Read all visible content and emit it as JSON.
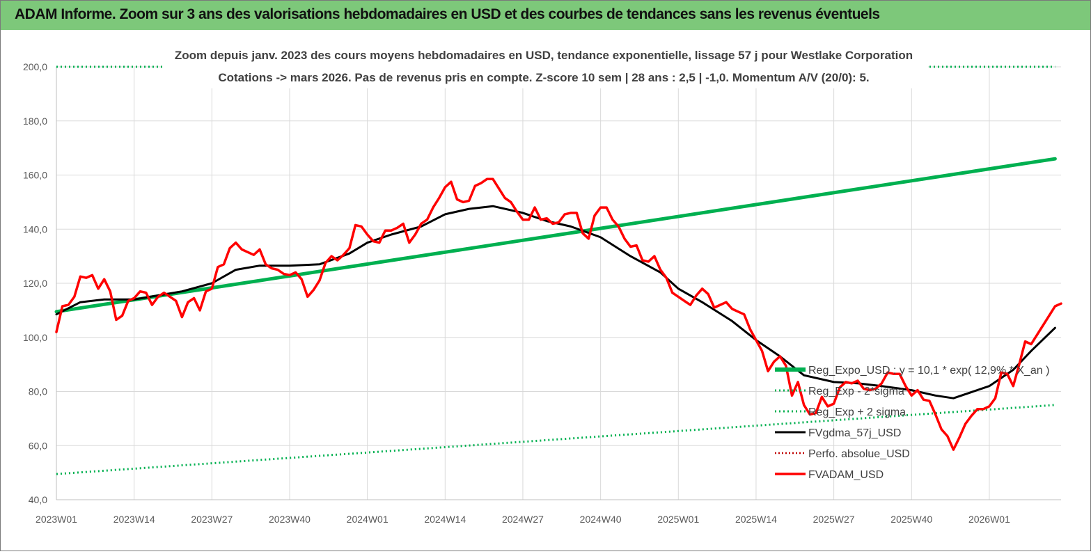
{
  "banner": {
    "title": "ADAM Informe. Zoom sur 3 ans des valorisations hebdomadaires en USD et des courbes de tendances sans les revenus éventuels"
  },
  "colors": {
    "banner_bg": "#7dc87a",
    "reg_expo": "#00b050",
    "fvgdma": "#000000",
    "fvadam": "#ff0000",
    "perfo": "#c00000",
    "grid": "#d9d9d9",
    "title_text": "#404040",
    "tick_text": "#595959"
  },
  "chart_data": {
    "type": "line",
    "title_line1": "Zoom depuis janv. 2023 des cours moyens hebdomadaires en USD, tendance exponentielle, lissage 57 j pour Westlake Corporation",
    "title_line2": "Cotations -> mars 2026. Pas de revenus pris en compte. Z-score 10 sem | 28 ans : 2,5 | -1,0. Momentum A/V (20/0): 5.",
    "ylim": [
      40,
      200
    ],
    "yticks": [
      "40,0",
      "60,0",
      "80,0",
      "100,0",
      "120,0",
      "140,0",
      "160,0",
      "180,0",
      "200,0"
    ],
    "xticks": [
      "2023W01",
      "2023W14",
      "2023W27",
      "2023W40",
      "2024W01",
      "2024W14",
      "2024W27",
      "2024W40",
      "2025W01",
      "2025W14",
      "2025W27",
      "2025W40",
      "2026W01"
    ],
    "grid": true,
    "legend_position": "bottom-right",
    "series": [
      {
        "name": "Reg_Expo_USD : y = 10,1 * exp( 12,9% * X_an )",
        "style": "solid-thick",
        "points": [
          [
            "2023W01",
            109.5
          ],
          [
            "2026W12",
            166.0
          ]
        ]
      },
      {
        "name": "Reg_Exp - 2*sigma",
        "style": "dotted",
        "points": [
          [
            "2023W01",
            49.5
          ],
          [
            "2026W12",
            75.0
          ]
        ]
      },
      {
        "name": "Reg_Exp + 2 sigma",
        "style": "dotted",
        "points": [
          [
            "2023W01",
            200.0
          ],
          [
            "2026W12",
            200.0
          ]
        ]
      },
      {
        "name": "FVgdma_57j_USD",
        "style": "solid",
        "points": [
          [
            "2023W01",
            108.5
          ],
          [
            "2023W05",
            113.0
          ],
          [
            "2023W09",
            114.0
          ],
          [
            "2023W14",
            114.0
          ],
          [
            "2023W18",
            115.5
          ],
          [
            "2023W22",
            117.0
          ],
          [
            "2023W27",
            120.0
          ],
          [
            "2023W31",
            125.0
          ],
          [
            "2023W35",
            126.5
          ],
          [
            "2023W40",
            126.5
          ],
          [
            "2023W45",
            127.0
          ],
          [
            "2023W50",
            131.0
          ],
          [
            "2024W01",
            135.0
          ],
          [
            "2024W05",
            138.0
          ],
          [
            "2024W10",
            141.0
          ],
          [
            "2024W14",
            145.5
          ],
          [
            "2024W18",
            147.5
          ],
          [
            "2024W22",
            148.5
          ],
          [
            "2024W27",
            146.0
          ],
          [
            "2024W31",
            143.0
          ],
          [
            "2024W35",
            141.0
          ],
          [
            "2024W40",
            137.0
          ],
          [
            "2024W45",
            130.0
          ],
          [
            "2024W50",
            124.0
          ],
          [
            "2025W01",
            118.0
          ],
          [
            "2025W05",
            113.0
          ],
          [
            "2025W10",
            106.0
          ],
          [
            "2025W14",
            99.0
          ],
          [
            "2025W18",
            93.0
          ],
          [
            "2025W22",
            86.0
          ],
          [
            "2025W27",
            83.5
          ],
          [
            "2025W31",
            83.0
          ],
          [
            "2025W35",
            82.0
          ],
          [
            "2025W40",
            80.5
          ],
          [
            "2025W44",
            78.5
          ],
          [
            "2025W47",
            77.5
          ],
          [
            "2026W01",
            82.0
          ],
          [
            "2026W05",
            88.0
          ],
          [
            "2026W08",
            95.0
          ],
          [
            "2026W12",
            103.5
          ]
        ]
      },
      {
        "name": "Perfo. absolue_USD",
        "style": "dotted",
        "points": []
      },
      {
        "name": "FVADAM_USD",
        "style": "solid-thick",
        "points": [
          [
            "2023W01",
            102.0
          ],
          [
            "2023W02",
            111.5
          ],
          [
            "2023W03",
            112.0
          ],
          [
            "2023W04",
            115.0
          ],
          [
            "2023W05",
            122.5
          ],
          [
            "2023W06",
            122.0
          ],
          [
            "2023W07",
            123.0
          ],
          [
            "2023W08",
            118.0
          ],
          [
            "2023W09",
            121.5
          ],
          [
            "2023W10",
            117.0
          ],
          [
            "2023W11",
            106.5
          ],
          [
            "2023W12",
            108.0
          ],
          [
            "2023W13",
            113.5
          ],
          [
            "2023W14",
            114.5
          ],
          [
            "2023W15",
            117.0
          ],
          [
            "2023W16",
            116.5
          ],
          [
            "2023W17",
            112.0
          ],
          [
            "2023W18",
            115.0
          ],
          [
            "2023W19",
            116.5
          ],
          [
            "2023W20",
            115.0
          ],
          [
            "2023W21",
            113.5
          ],
          [
            "2023W22",
            107.5
          ],
          [
            "2023W23",
            113.0
          ],
          [
            "2023W24",
            114.5
          ],
          [
            "2023W25",
            110.0
          ],
          [
            "2023W26",
            117.0
          ],
          [
            "2023W27",
            118.0
          ],
          [
            "2023W28",
            126.0
          ],
          [
            "2023W29",
            127.0
          ],
          [
            "2023W30",
            133.0
          ],
          [
            "2023W31",
            135.0
          ],
          [
            "2023W32",
            132.5
          ],
          [
            "2023W33",
            131.5
          ],
          [
            "2023W34",
            130.5
          ],
          [
            "2023W35",
            132.5
          ],
          [
            "2023W36",
            127.0
          ],
          [
            "2023W37",
            125.5
          ],
          [
            "2023W38",
            125.0
          ],
          [
            "2023W39",
            123.5
          ],
          [
            "2023W40",
            123.0
          ],
          [
            "2023W41",
            124.0
          ],
          [
            "2023W42",
            121.5
          ],
          [
            "2023W43",
            115.0
          ],
          [
            "2023W44",
            117.5
          ],
          [
            "2023W45",
            121.0
          ],
          [
            "2023W46",
            127.5
          ],
          [
            "2023W47",
            130.0
          ],
          [
            "2023W48",
            128.5
          ],
          [
            "2023W49",
            130.5
          ],
          [
            "2023W50",
            133.0
          ],
          [
            "2023W51",
            141.5
          ],
          [
            "2023W52",
            141.0
          ],
          [
            "2024W01",
            138.0
          ],
          [
            "2024W02",
            135.5
          ],
          [
            "2024W03",
            135.0
          ],
          [
            "2024W04",
            139.5
          ],
          [
            "2024W05",
            139.5
          ],
          [
            "2024W06",
            140.5
          ],
          [
            "2024W07",
            142.0
          ],
          [
            "2024W08",
            135.0
          ],
          [
            "2024W09",
            138.0
          ],
          [
            "2024W10",
            142.0
          ],
          [
            "2024W11",
            143.5
          ],
          [
            "2024W12",
            148.0
          ],
          [
            "2024W13",
            151.5
          ],
          [
            "2024W14",
            155.5
          ],
          [
            "2024W15",
            157.5
          ],
          [
            "2024W16",
            151.0
          ],
          [
            "2024W17",
            150.0
          ],
          [
            "2024W18",
            150.5
          ],
          [
            "2024W19",
            156.0
          ],
          [
            "2024W20",
            157.0
          ],
          [
            "2024W21",
            158.5
          ],
          [
            "2024W22",
            158.5
          ],
          [
            "2024W23",
            155.0
          ],
          [
            "2024W24",
            151.5
          ],
          [
            "2024W25",
            150.0
          ],
          [
            "2024W26",
            146.5
          ],
          [
            "2024W27",
            143.5
          ],
          [
            "2024W28",
            143.5
          ],
          [
            "2024W29",
            148.0
          ],
          [
            "2024W30",
            143.5
          ],
          [
            "2024W31",
            144.0
          ],
          [
            "2024W32",
            142.0
          ],
          [
            "2024W33",
            142.5
          ],
          [
            "2024W34",
            145.5
          ],
          [
            "2024W35",
            146.0
          ],
          [
            "2024W36",
            146.0
          ],
          [
            "2024W37",
            138.5
          ],
          [
            "2024W38",
            136.5
          ],
          [
            "2024W39",
            145.0
          ],
          [
            "2024W40",
            148.0
          ],
          [
            "2024W41",
            148.0
          ],
          [
            "2024W42",
            143.5
          ],
          [
            "2024W43",
            141.0
          ],
          [
            "2024W44",
            136.5
          ],
          [
            "2024W45",
            133.5
          ],
          [
            "2024W46",
            134.0
          ],
          [
            "2024W47",
            128.5
          ],
          [
            "2024W48",
            128.0
          ],
          [
            "2024W49",
            130.0
          ],
          [
            "2024W50",
            125.0
          ],
          [
            "2024W51",
            122.0
          ],
          [
            "2024W52",
            116.5
          ],
          [
            "2025W01",
            115.0
          ],
          [
            "2025W02",
            113.5
          ],
          [
            "2025W03",
            112.0
          ],
          [
            "2025W04",
            115.5
          ],
          [
            "2025W05",
            118.0
          ],
          [
            "2025W06",
            116.0
          ],
          [
            "2025W07",
            111.0
          ],
          [
            "2025W08",
            112.0
          ],
          [
            "2025W09",
            113.0
          ],
          [
            "2025W10",
            110.5
          ],
          [
            "2025W11",
            109.5
          ],
          [
            "2025W12",
            108.5
          ],
          [
            "2025W13",
            103.0
          ],
          [
            "2025W14",
            99.0
          ],
          [
            "2025W15",
            95.0
          ],
          [
            "2025W16",
            87.5
          ],
          [
            "2025W17",
            91.0
          ],
          [
            "2025W18",
            93.0
          ],
          [
            "2025W19",
            89.5
          ],
          [
            "2025W20",
            78.5
          ],
          [
            "2025W21",
            83.5
          ],
          [
            "2025W22",
            75.0
          ],
          [
            "2025W23",
            71.5
          ],
          [
            "2025W24",
            72.0
          ],
          [
            "2025W25",
            78.0
          ],
          [
            "2025W26",
            74.5
          ],
          [
            "2025W27",
            75.5
          ],
          [
            "2025W28",
            81.5
          ],
          [
            "2025W29",
            83.5
          ],
          [
            "2025W30",
            83.0
          ],
          [
            "2025W31",
            84.0
          ],
          [
            "2025W32",
            81.0
          ],
          [
            "2025W33",
            80.5
          ],
          [
            "2025W34",
            81.0
          ],
          [
            "2025W35",
            83.0
          ],
          [
            "2025W36",
            87.0
          ],
          [
            "2025W37",
            86.5
          ],
          [
            "2025W38",
            86.5
          ],
          [
            "2025W39",
            82.0
          ],
          [
            "2025W40",
            78.5
          ],
          [
            "2025W41",
            80.5
          ],
          [
            "2025W42",
            77.0
          ],
          [
            "2025W43",
            76.5
          ],
          [
            "2025W44",
            71.5
          ],
          [
            "2025W45",
            66.0
          ],
          [
            "2025W46",
            63.5
          ],
          [
            "2025W47",
            58.5
          ],
          [
            "2025W48",
            63.0
          ],
          [
            "2025W49",
            68.0
          ],
          [
            "2025W50",
            71.0
          ],
          [
            "2025W51",
            73.5
          ],
          [
            "2025W52",
            73.5
          ],
          [
            "2026W01",
            74.5
          ],
          [
            "2026W02",
            77.5
          ],
          [
            "2026W03",
            87.0
          ],
          [
            "2026W04",
            86.5
          ],
          [
            "2026W05",
            82.0
          ],
          [
            "2026W06",
            90.0
          ],
          [
            "2026W07",
            98.5
          ],
          [
            "2026W08",
            97.5
          ],
          [
            "2026W09",
            101.0
          ],
          [
            "2026W10",
            104.5
          ],
          [
            "2026W11",
            108.0
          ],
          [
            "2026W12",
            111.5
          ],
          [
            "2026W13",
            112.5
          ]
        ]
      }
    ]
  }
}
